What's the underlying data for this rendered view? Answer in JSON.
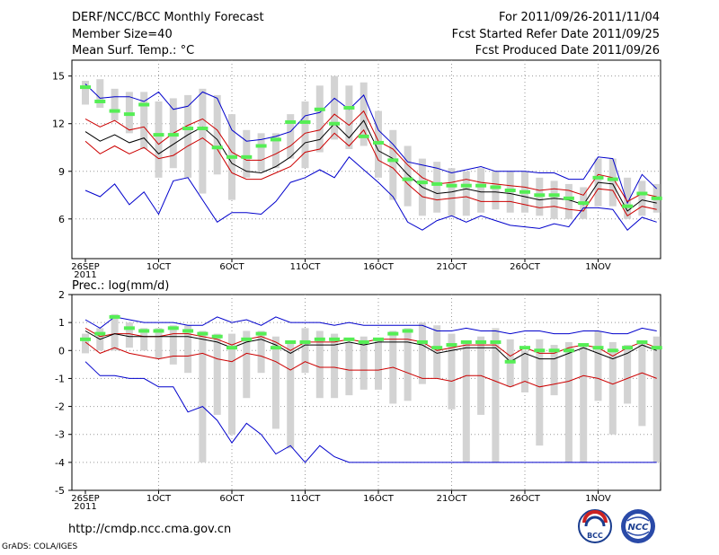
{
  "header": {
    "title": "DERF/NCC/BCC Monthly Forecast",
    "member_size": "Member Size=40",
    "variable": "Mean Surf. Temp.: °C",
    "forecast_range": "For 2011/09/26-2011/11/04",
    "started_date": "Fcst Started Refer Date 2011/09/25",
    "produced_date": "Fcst Produced Date 2011/09/26"
  },
  "footer": {
    "url": "http://cmdp.ncc.cma.gov.cn",
    "grads_credit": "GrADS: COLA/IGES"
  },
  "logos": {
    "bcc": "BCC",
    "ncc": "NCC"
  },
  "colors": {
    "bar": "#d3d3d3",
    "observed": "#55ee55",
    "ensemble_mean": "#000000",
    "inner_range": "#cc0000",
    "outer_range": "#0000cc",
    "grid": "#999999"
  },
  "chart_data": [
    {
      "id": "temp",
      "type": "line",
      "title": "Mean Surf. Temp.: °C",
      "ylabel": "",
      "ylim": [
        3.5,
        16
      ],
      "yticks": [
        6,
        9,
        12,
        15
      ],
      "x_labels": [
        {
          "day": 0,
          "text": "26SEP",
          "sub": "2011"
        },
        {
          "day": 5,
          "text": "1OCT"
        },
        {
          "day": 10,
          "text": "6OCT"
        },
        {
          "day": 15,
          "text": "11OCT"
        },
        {
          "day": 20,
          "text": "16OCT"
        },
        {
          "day": 25,
          "text": "21OCT"
        },
        {
          "day": 30,
          "text": "26OCT"
        },
        {
          "day": 35,
          "text": "1NOV"
        }
      ],
      "bars": [
        [
          13.2,
          14.7
        ],
        [
          13.0,
          14.8
        ],
        [
          12.2,
          14.2
        ],
        [
          11.4,
          14.0
        ],
        [
          10.4,
          14.0
        ],
        [
          8.6,
          13.4
        ],
        [
          9.2,
          13.6
        ],
        [
          8.6,
          13.8
        ],
        [
          7.6,
          14.2
        ],
        [
          8.8,
          13.8
        ],
        [
          7.2,
          12.6
        ],
        [
          8.6,
          11.6
        ],
        [
          9.0,
          11.4
        ],
        [
          9.2,
          11.4
        ],
        [
          9.8,
          12.6
        ],
        [
          9.2,
          13.4
        ],
        [
          10.2,
          14.4
        ],
        [
          11.0,
          15.0
        ],
        [
          10.4,
          14.4
        ],
        [
          10.6,
          14.6
        ],
        [
          8.6,
          12.8
        ],
        [
          7.2,
          11.6
        ],
        [
          6.8,
          10.6
        ],
        [
          6.2,
          9.8
        ],
        [
          6.4,
          9.6
        ],
        [
          6.2,
          9.2
        ],
        [
          6.2,
          9.0
        ],
        [
          6.4,
          9.2
        ],
        [
          6.6,
          9.0
        ],
        [
          6.4,
          9.0
        ],
        [
          6.4,
          9.0
        ],
        [
          6.2,
          8.6
        ],
        [
          6.0,
          8.4
        ],
        [
          6.0,
          8.2
        ],
        [
          6.0,
          8.0
        ],
        [
          6.8,
          9.8
        ],
        [
          6.8,
          9.8
        ],
        [
          6.0,
          8.6
        ],
        [
          6.2,
          8.4
        ],
        [
          6.4,
          8.2
        ]
      ],
      "observed": [
        14.3,
        13.4,
        12.8,
        12.6,
        13.2,
        11.3,
        11.3,
        11.7,
        11.7,
        10.5,
        9.9,
        9.9,
        10.6,
        11.0,
        12.1,
        12.1,
        12.9,
        12.0,
        13.0,
        11.2,
        10.8,
        9.7,
        8.5,
        8.3,
        8.2,
        8.1,
        8.1,
        8.1,
        8.0,
        7.8,
        7.7,
        7.5,
        7.5,
        7.3,
        7.0,
        8.6,
        8.5,
        6.8,
        7.6,
        7.3
      ],
      "series": [
        {
          "name": "outer-upper",
          "role": "outer_range",
          "values": [
            14.5,
            13.6,
            13.7,
            13.7,
            13.4,
            14.0,
            12.9,
            13.1,
            14.0,
            13.6,
            11.6,
            10.9,
            11.0,
            11.2,
            11.5,
            12.5,
            12.7,
            13.6,
            12.9,
            13.8,
            11.6,
            10.7,
            9.6,
            9.4,
            9.2,
            8.9,
            9.1,
            9.3,
            9.0,
            9.0,
            9.0,
            8.9,
            8.9,
            8.5,
            8.5,
            9.9,
            9.8,
            7.0,
            8.8,
            7.9
          ]
        },
        {
          "name": "inner-upper",
          "role": "inner_range",
          "values": [
            12.3,
            11.8,
            12.2,
            11.6,
            11.8,
            10.7,
            11.4,
            11.9,
            12.3,
            11.6,
            10.2,
            9.7,
            9.7,
            10.1,
            10.6,
            11.4,
            11.6,
            12.6,
            11.9,
            12.8,
            10.9,
            10.4,
            9.4,
            8.6,
            8.2,
            8.3,
            8.5,
            8.3,
            8.2,
            8.1,
            8.0,
            7.8,
            7.9,
            7.8,
            7.5,
            8.8,
            8.6,
            7.1,
            7.6,
            7.4
          ]
        },
        {
          "name": "ensemble-mean",
          "role": "ensemble_mean",
          "values": [
            11.5,
            10.9,
            11.3,
            10.8,
            11.1,
            10.1,
            10.7,
            11.3,
            11.8,
            11.0,
            9.5,
            9.0,
            8.9,
            9.3,
            9.9,
            10.8,
            11.0,
            12.0,
            11.1,
            12.2,
            10.3,
            9.8,
            8.8,
            8.0,
            7.6,
            7.7,
            7.9,
            7.7,
            7.7,
            7.6,
            7.4,
            7.2,
            7.3,
            7.2,
            6.9,
            8.3,
            8.2,
            6.5,
            7.2,
            7.0
          ]
        },
        {
          "name": "inner-lower",
          "role": "inner_range",
          "values": [
            10.9,
            10.1,
            10.6,
            10.1,
            10.5,
            9.8,
            10.0,
            10.6,
            11.1,
            10.4,
            8.9,
            8.5,
            8.5,
            8.9,
            9.3,
            10.2,
            10.4,
            11.4,
            10.6,
            11.6,
            9.7,
            9.2,
            8.2,
            7.4,
            7.2,
            7.3,
            7.4,
            7.1,
            7.1,
            7.1,
            6.9,
            6.7,
            6.8,
            6.6,
            6.5,
            7.9,
            7.8,
            6.2,
            6.8,
            6.6
          ]
        },
        {
          "name": "outer-lower",
          "role": "outer_range",
          "values": [
            7.8,
            7.4,
            8.2,
            6.9,
            7.7,
            6.3,
            8.4,
            8.6,
            7.2,
            5.8,
            6.4,
            6.4,
            6.3,
            7.1,
            8.3,
            8.6,
            9.1,
            8.6,
            9.9,
            9.1,
            8.3,
            7.4,
            5.8,
            5.3,
            5.9,
            6.2,
            5.8,
            6.2,
            5.9,
            5.6,
            5.5,
            5.4,
            5.7,
            5.5,
            6.7,
            6.7,
            6.6,
            5.3,
            6.1,
            5.8
          ]
        }
      ]
    },
    {
      "id": "precip",
      "type": "line",
      "title": "Prec.: log(mm/d)",
      "ylabel": "",
      "ylim": [
        -5,
        2
      ],
      "yticks": [
        -5,
        -4,
        -3,
        -2,
        -1,
        0,
        1,
        2
      ],
      "x_labels": [
        {
          "day": 0,
          "text": "26SEP",
          "sub": "2011"
        },
        {
          "day": 5,
          "text": "1OCT"
        },
        {
          "day": 10,
          "text": "6OCT"
        },
        {
          "day": 15,
          "text": "11OCT"
        },
        {
          "day": 20,
          "text": "16OCT"
        },
        {
          "day": 25,
          "text": "21OCT"
        },
        {
          "day": 30,
          "text": "26OCT"
        },
        {
          "day": 35,
          "text": "1NOV"
        }
      ],
      "bars": [
        [
          -0.1,
          0.6
        ],
        [
          0.0,
          0.8
        ],
        [
          0.0,
          1.3
        ],
        [
          0.1,
          1.0
        ],
        [
          0.0,
          0.8
        ],
        [
          -0.3,
          0.8
        ],
        [
          -0.5,
          0.9
        ],
        [
          -0.8,
          0.9
        ],
        [
          -4.0,
          0.7
        ],
        [
          -2.3,
          0.6
        ],
        [
          -3.0,
          0.6
        ],
        [
          -1.7,
          0.7
        ],
        [
          -0.8,
          0.7
        ],
        [
          -2.8,
          0.5
        ],
        [
          -3.5,
          0.3
        ],
        [
          -0.8,
          0.8
        ],
        [
          -1.7,
          0.7
        ],
        [
          -1.7,
          0.6
        ],
        [
          -1.6,
          0.3
        ],
        [
          -1.4,
          0.5
        ],
        [
          -1.4,
          0.4
        ],
        [
          -1.9,
          0.7
        ],
        [
          -1.8,
          0.8
        ],
        [
          -1.2,
          1.0
        ],
        [
          -1.0,
          0.9
        ],
        [
          -2.1,
          0.6
        ],
        [
          -4.0,
          0.3
        ],
        [
          -2.3,
          0.5
        ],
        [
          -4.0,
          0.8
        ],
        [
          -1.3,
          0.4
        ],
        [
          -1.5,
          0.0
        ],
        [
          -3.4,
          0.4
        ],
        [
          -1.6,
          0.2
        ],
        [
          -4.0,
          0.3
        ],
        [
          -4.0,
          0.2
        ],
        [
          -1.8,
          0.7
        ],
        [
          -3.0,
          0.3
        ],
        [
          -1.9,
          0.2
        ],
        [
          -2.7,
          0.3
        ],
        [
          -4.0,
          0.5
        ]
      ],
      "observed": [
        0.4,
        0.6,
        1.2,
        0.8,
        0.7,
        0.7,
        0.8,
        0.7,
        0.6,
        0.5,
        0.1,
        0.4,
        0.6,
        0.1,
        0.3,
        0.3,
        0.4,
        0.4,
        0.4,
        0.3,
        0.4,
        0.6,
        0.7,
        0.3,
        0.1,
        0.2,
        0.3,
        0.3,
        0.3,
        -0.4,
        0.1,
        0.0,
        0.0,
        0.0,
        0.2,
        0.1,
        0.0,
        0.1,
        0.3,
        0.1
      ],
      "series": [
        {
          "name": "outer-upper",
          "role": "outer_range",
          "values": [
            1.1,
            0.8,
            1.2,
            1.1,
            1.0,
            1.0,
            1.0,
            0.9,
            0.9,
            1.2,
            1.0,
            1.1,
            0.9,
            1.2,
            1.0,
            1.0,
            1.0,
            0.9,
            1.0,
            0.9,
            0.9,
            0.9,
            0.9,
            0.9,
            0.7,
            0.7,
            0.8,
            0.7,
            0.7,
            0.6,
            0.7,
            0.7,
            0.6,
            0.6,
            0.7,
            0.7,
            0.6,
            0.6,
            0.8,
            0.7
          ]
        },
        {
          "name": "inner-upper",
          "role": "inner_range",
          "values": [
            0.8,
            0.5,
            0.6,
            0.6,
            0.5,
            0.5,
            0.6,
            0.6,
            0.5,
            0.4,
            0.2,
            0.4,
            0.5,
            0.3,
            0.0,
            0.3,
            0.3,
            0.3,
            0.4,
            0.3,
            0.4,
            0.4,
            0.4,
            0.3,
            0.0,
            0.1,
            0.2,
            0.2,
            0.2,
            -0.2,
            0.1,
            -0.1,
            -0.1,
            0.1,
            0.2,
            0.1,
            -0.2,
            0.1,
            0.3,
            0.1
          ]
        },
        {
          "name": "ensemble-mean",
          "role": "ensemble_mean",
          "values": [
            0.7,
            0.4,
            0.6,
            0.5,
            0.5,
            0.5,
            0.5,
            0.5,
            0.4,
            0.3,
            0.1,
            0.3,
            0.4,
            0.2,
            -0.1,
            0.2,
            0.2,
            0.2,
            0.3,
            0.2,
            0.3,
            0.3,
            0.3,
            0.2,
            -0.1,
            0.0,
            0.1,
            0.1,
            0.1,
            -0.4,
            -0.1,
            -0.3,
            -0.3,
            -0.1,
            0.1,
            -0.1,
            -0.3,
            -0.1,
            0.2,
            0.0
          ]
        },
        {
          "name": "inner-lower",
          "role": "inner_range",
          "values": [
            0.3,
            -0.1,
            0.1,
            -0.1,
            -0.2,
            -0.3,
            -0.2,
            -0.2,
            -0.1,
            -0.3,
            -0.4,
            -0.1,
            -0.2,
            -0.4,
            -0.7,
            -0.4,
            -0.6,
            -0.6,
            -0.7,
            -0.7,
            -0.7,
            -0.6,
            -0.8,
            -1.0,
            -1.0,
            -1.1,
            -0.9,
            -0.9,
            -1.1,
            -1.3,
            -1.1,
            -1.3,
            -1.2,
            -1.1,
            -0.9,
            -1.0,
            -1.2,
            -1.0,
            -0.8,
            -1.0
          ]
        },
        {
          "name": "outer-lower",
          "role": "outer_range",
          "values": [
            -0.4,
            -0.9,
            -0.9,
            -1.0,
            -1.0,
            -1.3,
            -1.3,
            -2.2,
            -2.0,
            -2.5,
            -3.3,
            -2.6,
            -3.0,
            -3.7,
            -3.4,
            -4.0,
            -3.4,
            -3.8,
            -4.0,
            -4.0,
            -4.0,
            -4.0,
            -4.0,
            -4.0,
            -4.0,
            -4.0,
            -4.0,
            -4.0,
            -4.0,
            -4.0,
            -4.0,
            -4.0,
            -4.0,
            -4.0,
            -4.0,
            -4.0,
            -4.0,
            -4.0,
            -4.0,
            -4.0
          ]
        }
      ]
    }
  ]
}
